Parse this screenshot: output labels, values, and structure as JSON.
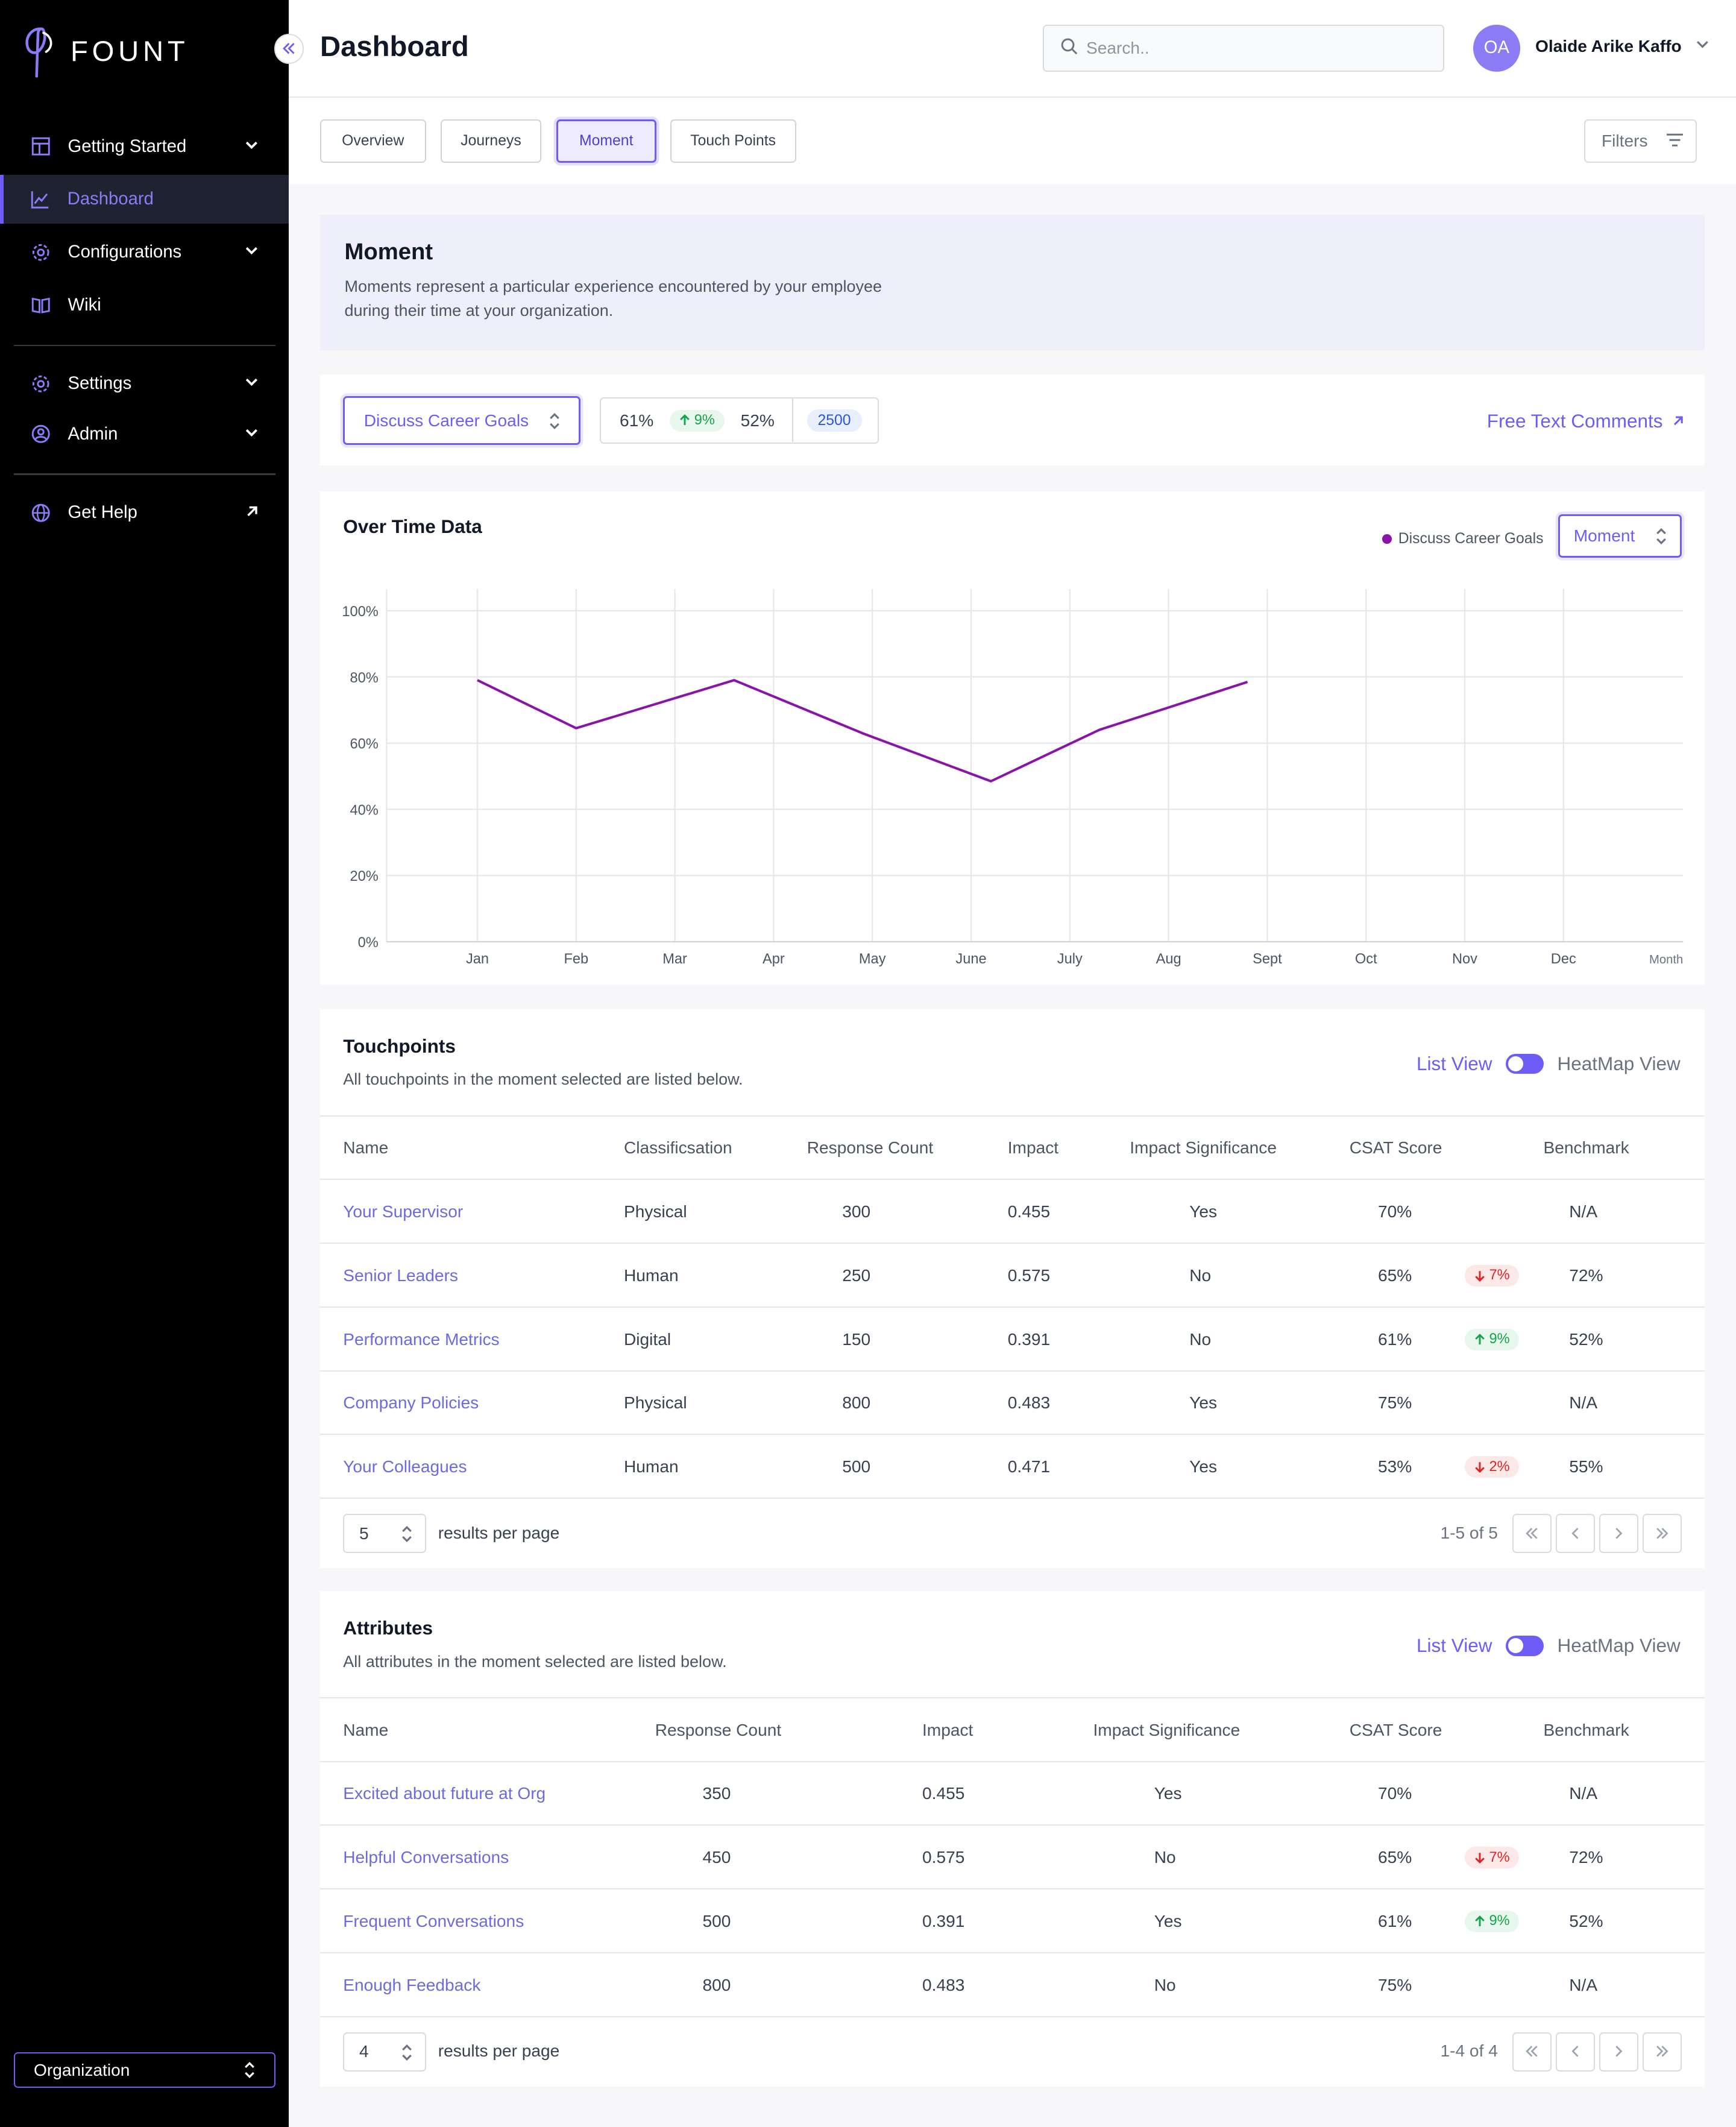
{
  "brand": {
    "name": "FOUNT"
  },
  "sidebar": {
    "items": [
      {
        "label": "Getting Started",
        "icon": "layout-icon",
        "expandable": true
      },
      {
        "label": "Dashboard",
        "icon": "chart-line-icon",
        "active": true
      },
      {
        "label": "Configurations",
        "icon": "gear-icon",
        "expandable": true
      },
      {
        "label": "Wiki",
        "icon": "book-icon"
      },
      {
        "label": "Settings",
        "icon": "gear-icon",
        "expandable": true
      },
      {
        "label": "Admin",
        "icon": "user-circle-icon",
        "expandable": true
      },
      {
        "label": "Get Help",
        "icon": "globe-icon",
        "external": true
      }
    ],
    "org_select": "Organization"
  },
  "header": {
    "title": "Dashboard",
    "search_placeholder": "Search..",
    "user_initials": "OA",
    "user_name": "Olaide Arike Kaffo"
  },
  "tabs": [
    {
      "label": "Overview"
    },
    {
      "label": "Journeys"
    },
    {
      "label": "Moment",
      "active": true
    },
    {
      "label": "Touch Points"
    }
  ],
  "filters_label": "Filters",
  "banner": {
    "title": "Moment",
    "description": "Moments represent a particular experience encountered by your employee during their time at your organization."
  },
  "selector": {
    "moment": "Discuss Career Goals",
    "score": "61%",
    "change": "9%",
    "benchmark": "52%",
    "count": "2500",
    "free_text_link": "Free Text Comments"
  },
  "over_time": {
    "title": "Over Time Data",
    "legend": "Discuss Career Goals",
    "select": "Moment"
  },
  "chart_data": {
    "type": "line",
    "x": [
      "Jan",
      "Feb",
      "Mar",
      "Apr",
      "May",
      "June",
      "July",
      "Aug",
      "Sept",
      "Oct",
      "Nov",
      "Dec"
    ],
    "xlabel": "Month",
    "ylabel": "",
    "ylim": [
      0,
      100
    ],
    "yticks": [
      "0%",
      "20%",
      "40%",
      "60%",
      "80%",
      "100%"
    ],
    "grid": true,
    "legend": "top-right",
    "series": [
      {
        "name": "Discuss Career Goals",
        "color": "#8a13a8",
        "points": [
          [
            0.0,
            79
          ],
          [
            1.0,
            64.5
          ],
          [
            2.6,
            79
          ],
          [
            3.9,
            63
          ],
          [
            5.2,
            48.5
          ],
          [
            6.3,
            64
          ],
          [
            7.8,
            78.5
          ]
        ]
      }
    ]
  },
  "touchpoints": {
    "title": "Touchpoints",
    "subtitle": "All touchpoints in the moment selected are listed below.",
    "list_view": "List View",
    "heatmap_view": "HeatMap View",
    "columns": [
      "Name",
      "Classificsation",
      "Response Count",
      "Impact",
      "Impact Significance",
      "CSAT Score",
      "Benchmark"
    ],
    "rows": [
      {
        "name": "Your Supervisor",
        "classification": "Physical",
        "count": "300",
        "impact": "0.455",
        "significance": "Yes",
        "csat": "70%",
        "change": "",
        "dir": "",
        "benchmark": "N/A"
      },
      {
        "name": "Senior Leaders",
        "classification": "Human",
        "count": "250",
        "impact": "0.575",
        "significance": "No",
        "csat": "65%",
        "change": "7%",
        "dir": "down",
        "benchmark": "72%"
      },
      {
        "name": "Performance Metrics",
        "classification": "Digital",
        "count": "150",
        "impact": "0.391",
        "significance": "No",
        "csat": "61%",
        "change": "9%",
        "dir": "up",
        "benchmark": "52%"
      },
      {
        "name": "Company Policies",
        "classification": "Physical",
        "count": "800",
        "impact": "0.483",
        "significance": "Yes",
        "csat": "75%",
        "change": "",
        "dir": "",
        "benchmark": "N/A"
      },
      {
        "name": "Your Colleagues",
        "classification": "Human",
        "count": "500",
        "impact": "0.471",
        "significance": "Yes",
        "csat": "53%",
        "change": "2%",
        "dir": "down",
        "benchmark": "55%"
      }
    ],
    "per_page": "5",
    "per_page_label": "results per page",
    "range": "1-5 of 5"
  },
  "attributes": {
    "title": "Attributes",
    "subtitle": "All attributes in the moment selected are listed below.",
    "list_view": "List View",
    "heatmap_view": "HeatMap View",
    "columns": [
      "Name",
      "Response Count",
      "Impact",
      "Impact Significance",
      "CSAT Score",
      "Benchmark"
    ],
    "rows": [
      {
        "name": "Excited about future at Org",
        "count": "350",
        "impact": "0.455",
        "significance": "Yes",
        "csat": "70%",
        "change": "",
        "dir": "",
        "benchmark": "N/A"
      },
      {
        "name": "Helpful Conversations",
        "count": "450",
        "impact": "0.575",
        "significance": "No",
        "csat": "65%",
        "change": "7%",
        "dir": "down",
        "benchmark": "72%"
      },
      {
        "name": "Frequent Conversations",
        "count": "500",
        "impact": "0.391",
        "significance": "Yes",
        "csat": "61%",
        "change": "9%",
        "dir": "up",
        "benchmark": "52%"
      },
      {
        "name": "Enough Feedback",
        "count": "800",
        "impact": "0.483",
        "significance": "No",
        "csat": "75%",
        "change": "",
        "dir": "",
        "benchmark": "N/A"
      }
    ],
    "per_page": "4",
    "per_page_label": "results per page",
    "range": "1-4 of 4"
  }
}
